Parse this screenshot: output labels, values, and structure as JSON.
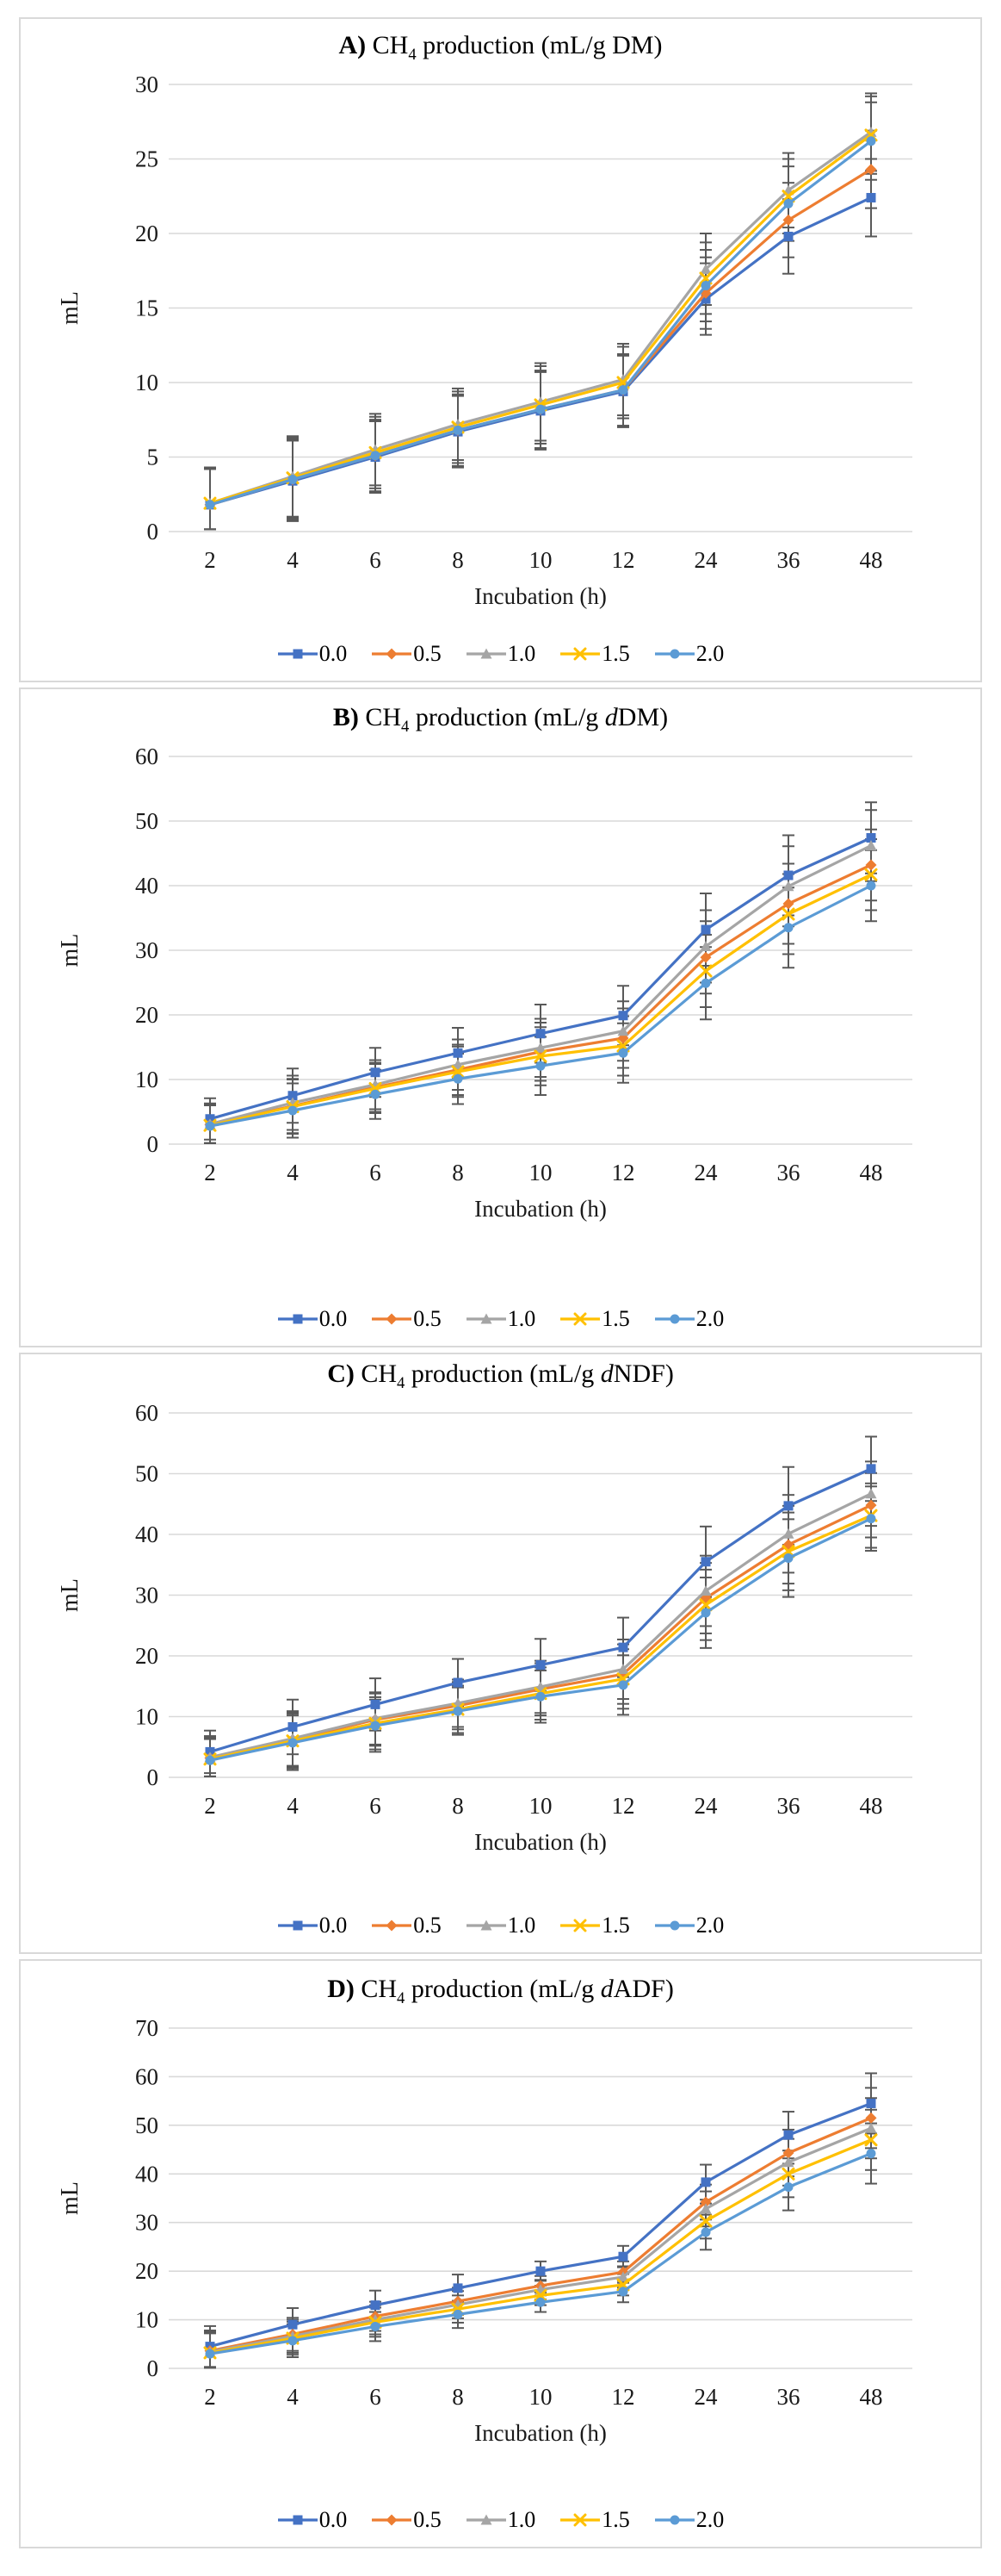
{
  "figure_style": {
    "panel_border_color": "#d9d9d9",
    "grid_color": "#d9d9d9",
    "error_bar_color": "#595959",
    "text_color": "#1a1a1a",
    "series_colors": [
      "#4472C4",
      "#ED7D31",
      "#A5A5A5",
      "#FFC000",
      "#5B9BD5"
    ]
  },
  "chart_data": [
    {
      "type": "line",
      "title": "A) CH4 production (mL/g DM)",
      "title_parts": {
        "label": "A)",
        "compound": "CH",
        "subscript": "4",
        "tail": " production (mL/g ",
        "italic": "",
        "unit": "DM",
        "close": ")"
      },
      "xlabel": "Incubation (h)",
      "ylabel": "mL",
      "categories": [
        "2",
        "4",
        "6",
        "8",
        "10",
        "12",
        "24",
        "36",
        "48"
      ],
      "ylim": [
        0,
        30
      ],
      "ytick_step": 5,
      "grid": true,
      "legend_position": "bottom",
      "error_bars": [
        2.4,
        2.7,
        2.4,
        2.4,
        2.6,
        2.4,
        2.4,
        2.5,
        2.6
      ],
      "series": [
        {
          "name": "0.0",
          "color": "#4472C4",
          "marker": "square",
          "values": [
            1.8,
            3.4,
            5.0,
            6.7,
            8.1,
            9.4,
            15.6,
            19.8,
            22.4
          ]
        },
        {
          "name": "0.5",
          "color": "#ED7D31",
          "marker": "diamond",
          "values": [
            1.8,
            3.5,
            5.1,
            6.8,
            8.2,
            9.5,
            16.0,
            20.9,
            24.3
          ]
        },
        {
          "name": "1.0",
          "color": "#A5A5A5",
          "marker": "triangle",
          "values": [
            1.9,
            3.7,
            5.5,
            7.2,
            8.7,
            10.2,
            17.6,
            22.9,
            26.8
          ]
        },
        {
          "name": "1.5",
          "color": "#FFC000",
          "marker": "x",
          "values": [
            1.9,
            3.6,
            5.3,
            7.0,
            8.5,
            10.0,
            17.0,
            22.5,
            26.6
          ]
        },
        {
          "name": "2.0",
          "color": "#5B9BD5",
          "marker": "circle",
          "values": [
            1.8,
            3.5,
            5.1,
            6.8,
            8.2,
            9.5,
            16.5,
            22.0,
            26.2
          ]
        }
      ]
    },
    {
      "type": "line",
      "title": "B) CH4 production (mL/g dDM)",
      "title_parts": {
        "label": "B)",
        "compound": "CH",
        "subscript": "4",
        "tail": " production (mL/g ",
        "italic": "d",
        "unit": "DM",
        "close": ")"
      },
      "xlabel": "Incubation (h)",
      "ylabel": "mL",
      "categories": [
        "2",
        "4",
        "6",
        "8",
        "10",
        "12",
        "24",
        "36",
        "48"
      ],
      "ylim": [
        0,
        60
      ],
      "ytick_step": 10,
      "grid": true,
      "legend_position": "bottom",
      "error_bars": [
        3.2,
        4.2,
        3.8,
        3.9,
        4.5,
        4.6,
        5.6,
        6.2,
        5.5
      ],
      "series": [
        {
          "name": "0.0",
          "color": "#4472C4",
          "marker": "square",
          "values": [
            3.9,
            7.5,
            11.1,
            14.1,
            17.1,
            19.9,
            33.2,
            41.6,
            47.4
          ]
        },
        {
          "name": "0.5",
          "color": "#ED7D31",
          "marker": "diamond",
          "values": [
            3.0,
            5.9,
            8.8,
            11.5,
            14.3,
            16.4,
            28.9,
            37.2,
            43.2
          ]
        },
        {
          "name": "1.0",
          "color": "#A5A5A5",
          "marker": "triangle",
          "values": [
            3.1,
            6.4,
            9.2,
            12.3,
            14.9,
            17.5,
            30.6,
            39.9,
            46.2
          ]
        },
        {
          "name": "1.5",
          "color": "#FFC000",
          "marker": "x",
          "values": [
            2.9,
            5.8,
            8.6,
            11.2,
            13.6,
            15.2,
            26.8,
            35.6,
            41.7
          ]
        },
        {
          "name": "2.0",
          "color": "#5B9BD5",
          "marker": "circle",
          "values": [
            2.8,
            5.2,
            7.7,
            10.1,
            12.1,
            14.1,
            24.9,
            33.5,
            40.0
          ]
        }
      ]
    },
    {
      "type": "line",
      "title": "C) CH4 production (mL/g dNDF)",
      "title_parts": {
        "label": "C)",
        "compound": "CH",
        "subscript": "4",
        "tail": " production (mL/g ",
        "italic": "d",
        "unit": "NDF",
        "close": ")"
      },
      "xlabel": "Incubation (h)",
      "ylabel": "mL",
      "categories": [
        "2",
        "4",
        "6",
        "8",
        "10",
        "12",
        "24",
        "36",
        "48"
      ],
      "ylim": [
        0,
        60
      ],
      "ytick_step": 10,
      "grid": true,
      "legend_position": "bottom",
      "error_bars": [
        3.5,
        4.5,
        4.3,
        3.9,
        4.3,
        4.9,
        5.8,
        6.4,
        5.3
      ],
      "series": [
        {
          "name": "0.0",
          "color": "#4472C4",
          "marker": "square",
          "values": [
            4.2,
            8.3,
            12.0,
            15.6,
            18.5,
            21.4,
            35.5,
            44.7,
            50.8
          ]
        },
        {
          "name": "0.5",
          "color": "#ED7D31",
          "marker": "diamond",
          "values": [
            3.2,
            6.2,
            9.5,
            11.8,
            14.5,
            17.0,
            29.5,
            38.3,
            44.8
          ]
        },
        {
          "name": "1.0",
          "color": "#A5A5A5",
          "marker": "triangle",
          "values": [
            3.3,
            6.4,
            9.7,
            12.2,
            14.9,
            17.8,
            30.7,
            40.1,
            46.7
          ]
        },
        {
          "name": "1.5",
          "color": "#FFC000",
          "marker": "x",
          "values": [
            3.0,
            6.0,
            8.9,
            11.2,
            13.8,
            16.2,
            28.4,
            37.2,
            43.1
          ]
        },
        {
          "name": "2.0",
          "color": "#5B9BD5",
          "marker": "circle",
          "values": [
            2.8,
            5.7,
            8.5,
            10.9,
            13.3,
            15.2,
            27.1,
            36.1,
            42.6
          ]
        }
      ]
    },
    {
      "type": "line",
      "title": "D) CH4 production (mL/g dADF)",
      "title_parts": {
        "label": "D)",
        "compound": "CH",
        "subscript": "4",
        "tail": " production (mL/g ",
        "italic": "d",
        "unit": "ADF",
        "close": ")"
      },
      "xlabel": "Incubation (h)",
      "ylabel": "mL",
      "categories": [
        "2",
        "4",
        "6",
        "8",
        "10",
        "12",
        "24",
        "36",
        "48"
      ],
      "ylim": [
        0,
        70
      ],
      "ytick_step": 10,
      "grid": true,
      "legend_position": "bottom",
      "error_bars": [
        4.2,
        3.4,
        3.0,
        2.8,
        2.0,
        2.2,
        3.6,
        4.8,
        6.2
      ],
      "series": [
        {
          "name": "0.0",
          "color": "#4472C4",
          "marker": "square",
          "values": [
            4.5,
            9.0,
            13.0,
            16.5,
            20.0,
            23.0,
            38.3,
            48.0,
            54.5
          ]
        },
        {
          "name": "0.5",
          "color": "#ED7D31",
          "marker": "diamond",
          "values": [
            3.6,
            7.0,
            10.7,
            13.8,
            17.0,
            19.8,
            34.2,
            44.3,
            51.5
          ]
        },
        {
          "name": "1.0",
          "color": "#A5A5A5",
          "marker": "triangle",
          "values": [
            3.4,
            6.6,
            10.0,
            13.1,
            16.2,
            18.8,
            32.8,
            42.4,
            49.4
          ]
        },
        {
          "name": "1.5",
          "color": "#FFC000",
          "marker": "x",
          "values": [
            3.2,
            6.2,
            9.5,
            12.2,
            15.0,
            17.2,
            30.3,
            40.0,
            47.0
          ]
        },
        {
          "name": "2.0",
          "color": "#5B9BD5",
          "marker": "circle",
          "values": [
            3.0,
            5.7,
            8.6,
            11.1,
            13.6,
            15.8,
            28.0,
            37.3,
            44.2
          ]
        }
      ]
    }
  ]
}
